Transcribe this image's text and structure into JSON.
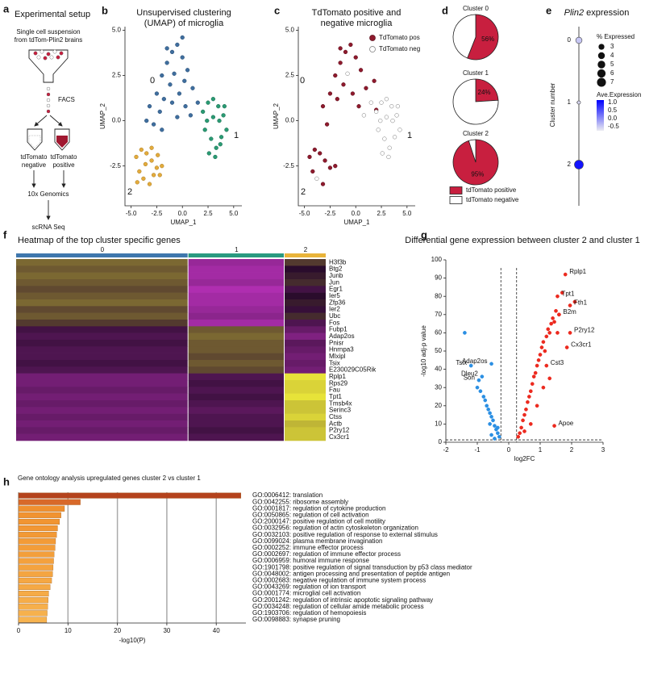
{
  "panel_labels": [
    "a",
    "b",
    "c",
    "d",
    "e",
    "f",
    "g",
    "h"
  ],
  "setup": {
    "title": "Experimental setup",
    "source": [
      "Single cell suspension",
      "from tdTom-Plin2 brains"
    ],
    "sort": "FACS",
    "negative": [
      "tdTomato",
      "negative"
    ],
    "positive": [
      "tdTomato",
      "positive"
    ],
    "sequencing": "10x Genomics",
    "readout": "scRNA Seq"
  },
  "chart_data": [
    {
      "type": "scatter",
      "title": [
        "Unsupervised clustering",
        "(UMAP) of microglia"
      ],
      "x_label": "UMAP_1",
      "y_label": "UMAP_2",
      "xlim": [
        -5.6,
        5.8
      ],
      "ylim": [
        -4.7,
        5.2
      ],
      "xticks": [
        {
          "value": -5,
          "label": "-5.0"
        },
        -2.5,
        {
          "value": 0,
          "label": "0.0"
        },
        2.5,
        {
          "value": 5,
          "label": "5.0"
        }
      ],
      "yticks": [
        -2.5,
        {
          "value": 0,
          "label": "0.0"
        },
        2.5,
        {
          "value": 5,
          "label": "5.0"
        }
      ],
      "cluster_labels": [
        "0",
        "1",
        "2"
      ],
      "series": [
        {
          "color": "#3f6e9e",
          "edge_color": "#2a4d73",
          "x": [
            -3.2,
            -2.5,
            -2.0,
            -1.5,
            -1.0,
            -0.5,
            0,
            0.5,
            1.0,
            1.5,
            -2.8,
            -2.2,
            -1.8,
            -1.2,
            -0.8,
            -0.3,
            0.3,
            0.8,
            -1.5,
            -0.5,
            0.2,
            -2.0,
            -3.5,
            -1.0,
            0.0
          ],
          "y": [
            0.8,
            1.5,
            2.5,
            3.2,
            3.8,
            4.2,
            3.5,
            2.8,
            1.8,
            1.0,
            -0.2,
            0.5,
            1.2,
            2.0,
            2.6,
            1.5,
            0.8,
            0.3,
            4.0,
            0.2,
            2.2,
            -0.5,
            0.0,
            1.0,
            4.6
          ]
        },
        {
          "color": "#2a9a73",
          "edge_color": "#1b6b4f",
          "x": [
            2.0,
            2.5,
            3.0,
            3.5,
            4.0,
            4.3,
            2.2,
            2.8,
            3.3,
            3.8,
            2.4,
            3.0,
            3.6,
            4.1,
            2.6,
            3.2,
            3.7
          ],
          "y": [
            0.5,
            1.0,
            1.2,
            0.8,
            0.3,
            -0.5,
            -0.5,
            -1.0,
            -1.5,
            -0.9,
            0.0,
            0.2,
            0.0,
            0.8,
            -1.8,
            -2.0,
            -1.3
          ]
        },
        {
          "color": "#e3ab3c",
          "edge_color": "#a77a22",
          "x": [
            -4.5,
            -4.0,
            -3.5,
            -3.0,
            -2.5,
            -2.2,
            -4.2,
            -3.8,
            -3.2,
            -2.8,
            -4.4,
            -3.6,
            -3.0,
            -2.4,
            -2.0
          ],
          "y": [
            -2.0,
            -1.6,
            -1.8,
            -2.2,
            -2.6,
            -3.0,
            -2.8,
            -3.2,
            -3.5,
            -3.0,
            -3.4,
            -2.4,
            -1.5,
            -1.9,
            -2.5
          ]
        }
      ]
    },
    {
      "type": "scatter",
      "title": [
        "TdTomato positive and",
        "negative microglia"
      ],
      "x_label": "UMAP_1",
      "y_label": "UMAP_2",
      "xlim": [
        -5.6,
        5.8
      ],
      "ylim": [
        -4.7,
        5.2
      ],
      "xticks": [
        {
          "value": -5,
          "label": "-5.0"
        },
        -2.5,
        {
          "value": 0,
          "label": "0.0"
        },
        2.5,
        {
          "value": 5,
          "label": "5.0"
        }
      ],
      "yticks": [
        -2.5,
        {
          "value": 0,
          "label": "0.0"
        },
        2.5,
        {
          "value": 5,
          "label": "5.0"
        }
      ],
      "cluster_labels": [
        "0",
        "1",
        "2"
      ],
      "series": [
        {
          "name": "TdTomato pos",
          "color": "#8e1a2d",
          "edge_color": "#5a0f1c",
          "x": [
            -3.2,
            -2.5,
            -2.0,
            -1.5,
            -1.0,
            -0.5,
            0,
            0.5,
            1.0,
            -2.8,
            -1.8,
            -1.2,
            -0.3,
            0.3,
            -1.5,
            -4.5,
            -4.0,
            -3.5,
            -3.0,
            -2.5,
            -4.2,
            -3.2,
            -2.0,
            2.0,
            1.8
          ],
          "y": [
            0.8,
            1.5,
            2.5,
            3.2,
            3.8,
            4.2,
            3.5,
            2.8,
            1.8,
            -0.2,
            1.2,
            2.0,
            1.5,
            0.8,
            4.0,
            -2.0,
            -1.6,
            -1.8,
            -2.2,
            -2.6,
            -2.8,
            -3.5,
            -2.5,
            0.6,
            2.2
          ]
        },
        {
          "name": "TdTomato neg",
          "color": "#ffffff",
          "edge_color": "#777777",
          "x": [
            2.0,
            2.5,
            3.0,
            3.5,
            4.0,
            4.3,
            2.2,
            2.8,
            3.3,
            3.8,
            2.4,
            3.0,
            3.6,
            4.1,
            2.6,
            3.2,
            1.5,
            0.8,
            -0.8,
            -3.8
          ],
          "y": [
            0.5,
            1.0,
            1.2,
            0.8,
            0.3,
            -0.5,
            -0.5,
            -1.0,
            -1.5,
            -0.9,
            0.0,
            0.2,
            0.0,
            0.8,
            -1.8,
            -2.0,
            1.0,
            0.3,
            2.6,
            -3.2
          ]
        }
      ]
    },
    {
      "type": "pie",
      "categories": [
        "Cluster 0",
        "Cluster 1",
        "Cluster 2"
      ],
      "series": [
        {
          "name": "tdTomato positive",
          "color": "#c81f3f",
          "values": [
            56,
            24,
            95
          ],
          "value_labels": [
            "56%",
            "24%",
            "95%"
          ]
        },
        {
          "name": "tdTomato negative",
          "color": "#ffffff",
          "values": [
            44,
            76,
            5
          ]
        }
      ]
    },
    {
      "type": "dotplot",
      "title": [
        "Plin2",
        "expression"
      ],
      "y_label": "Cluster number",
      "categories": [
        "0",
        "1",
        "2"
      ],
      "size_values": [
        3.5,
        1,
        7
      ],
      "color_values": [
        -0.45,
        -0.6,
        1.0
      ],
      "size_legend_title": "% Expressed",
      "size_legend": [
        3,
        4,
        5,
        6,
        7
      ],
      "color_legend_title": "Ave.Expression",
      "clim": [
        -0.75,
        1.15
      ],
      "color_low": "#ececf2",
      "color_high": "#0000ff",
      "color_ticks": [
        {
          "value": 1,
          "label": "1.0"
        },
        0.5,
        {
          "value": 0,
          "label": "0.0"
        },
        -0.5
      ]
    },
    {
      "type": "heatmap",
      "title": "Heatmap of the top cluster specific genes",
      "cluster_labels": [
        "0",
        "1",
        "2"
      ],
      "cluster_colors": [
        "#3f77ad",
        "#2a9a80",
        "#e9b43a"
      ],
      "clim": [
        -1.5,
        1.5
      ],
      "genes": [
        "H3f3b",
        "Btg2",
        "Junb",
        "Jun",
        "Egr1",
        "Ier5",
        "Zfp36",
        "Ier2",
        "Ubc",
        "Fos",
        "Fubp1",
        "Adap2os",
        "Pnisr",
        "Hnrnpa3",
        "Mlxipl",
        "Tsix",
        "E230029C05Rik",
        "Rplp1",
        "Rps29",
        "Fau",
        "Tpt1",
        "Tmsb4x",
        "Serinc3",
        "Ctss",
        "Actb",
        "P2ry12",
        "Cx3cr1"
      ],
      "values": [
        [
          0.6,
          -0.9,
          0.3
        ],
        [
          0.5,
          -1.0,
          0.0
        ],
        [
          0.6,
          -1.0,
          0.1
        ],
        [
          0.5,
          -0.9,
          0.2
        ],
        [
          0.4,
          -1.1,
          -0.2
        ],
        [
          0.5,
          -1.0,
          0.0
        ],
        [
          0.6,
          -1.0,
          0.1
        ],
        [
          0.4,
          -0.9,
          -0.1
        ],
        [
          0.5,
          -0.8,
          0.2
        ],
        [
          0.3,
          -1.0,
          -0.3
        ],
        [
          -0.2,
          0.5,
          -0.5
        ],
        [
          -0.3,
          0.6,
          -0.7
        ],
        [
          -0.2,
          0.5,
          -0.4
        ],
        [
          -0.3,
          0.5,
          -0.5
        ],
        [
          -0.3,
          0.4,
          -0.6
        ],
        [
          -0.2,
          0.5,
          -0.5
        ],
        [
          -0.3,
          0.4,
          -0.6
        ],
        [
          -0.6,
          -0.3,
          1.4
        ],
        [
          -0.6,
          -0.2,
          1.3
        ],
        [
          -0.5,
          -0.3,
          1.3
        ],
        [
          -0.6,
          -0.2,
          1.4
        ],
        [
          -0.5,
          -0.3,
          1.2
        ],
        [
          -0.6,
          -0.4,
          1.2
        ],
        [
          -0.5,
          -0.3,
          1.3
        ],
        [
          -0.6,
          -0.3,
          1.1
        ],
        [
          -0.5,
          -0.2,
          1.2
        ],
        [
          -0.6,
          -0.3,
          1.2
        ]
      ]
    },
    {
      "type": "scatter",
      "title": [
        "Differential gene expression between cluster 2 and cluster 1"
      ],
      "x_label": "log2FC",
      "y_label": "-log10 adj-p value",
      "xlim": [
        -2,
        3
      ],
      "ylim": [
        0,
        100
      ],
      "xticks": [
        -2,
        -1,
        0,
        1,
        2,
        3
      ],
      "yticks": [
        0,
        10,
        20,
        30,
        40,
        50,
        60,
        70,
        80,
        90,
        100
      ],
      "thresholds": {
        "x": [
          -0.25,
          0.25
        ],
        "y": 1.3
      },
      "series": [
        {
          "color": "#ec2a1f",
          "x": [
            0.3,
            0.35,
            0.4,
            0.45,
            0.5,
            0.55,
            0.6,
            0.65,
            0.7,
            0.75,
            0.8,
            0.85,
            0.9,
            0.95,
            1.0,
            1.05,
            1.1,
            1.15,
            1.2,
            1.25,
            1.3,
            1.35,
            1.4,
            1.45,
            1.5,
            1.55,
            1.6,
            1.7,
            2.1,
            0.5,
            0.7,
            0.9,
            1.1,
            1.3,
            1.8,
            1.55,
            1.95,
            1.6,
            1.95,
            1.85,
            1.2,
            1.45
          ],
          "y": [
            3,
            5,
            8,
            12,
            15,
            18,
            22,
            25,
            28,
            32,
            36,
            38,
            42,
            45,
            48,
            52,
            55,
            50,
            58,
            62,
            60,
            65,
            68,
            66,
            72,
            60,
            70,
            82,
            77,
            6,
            10,
            20,
            30,
            35,
            92,
            80,
            75,
            70,
            60,
            52,
            42,
            9
          ]
        },
        {
          "color": "#2b8fe3",
          "x": [
            -0.3,
            -0.35,
            -0.4,
            -0.45,
            -0.5,
            -0.55,
            -0.6,
            -0.65,
            -0.7,
            -0.75,
            -0.8,
            -0.9,
            -1.0,
            -1.4,
            -0.45,
            -0.55,
            -0.35,
            -0.6,
            -0.55,
            -1.2,
            -0.85,
            -0.95
          ],
          "y": [
            3,
            5,
            7,
            9,
            12,
            14,
            16,
            18,
            20,
            23,
            25,
            28,
            30,
            60,
            2,
            4,
            8,
            10,
            43,
            42,
            36,
            34
          ]
        }
      ],
      "labels": [
        {
          "text": "Rplp1",
          "x": 1.8,
          "y": 92
        },
        {
          "text": "Tpt1",
          "x": 1.55,
          "y": 80
        },
        {
          "text": "Fth1",
          "x": 1.95,
          "y": 75
        },
        {
          "text": "B2m",
          "x": 1.6,
          "y": 70
        },
        {
          "text": "P2ry12",
          "x": 1.95,
          "y": 60
        },
        {
          "text": "Cx3cr1",
          "x": 1.85,
          "y": 52
        },
        {
          "text": "Cst3",
          "x": 1.2,
          "y": 42
        },
        {
          "text": "Apoe",
          "x": 1.45,
          "y": 9
        },
        {
          "text": "Adap2os",
          "x": -0.55,
          "y": 43
        },
        {
          "text": "Tsix",
          "x": -1.2,
          "y": 42
        },
        {
          "text": "Dleu2",
          "x": -0.85,
          "y": 36
        },
        {
          "text": "Son",
          "x": -0.95,
          "y": 34
        }
      ]
    },
    {
      "type": "hbar",
      "title": "Gene ontology analysis upregulated genes cluster 2 vs cluster 1",
      "x_label": "-log10(P)",
      "xlim": [
        0,
        46
      ],
      "xticks": [
        0,
        10,
        20,
        30,
        40
      ],
      "grid": true,
      "categories": [
        "GO:0006412: translation",
        "GO:0042255: ribosome assembly",
        "GO:0001817: regulation of cytokine production",
        "GO:0050865: regulation of cell activation",
        "GO:2000147: positive regulation of cell motility",
        "GO:0032956: regulation of actin cytoskeleton organization",
        "GO:0032103: positive regulation of response to external stimulus",
        "GO:0099024: plasma membrane invagination",
        "GO:0002252: immune effector process",
        "GO:0002697: regulation of immune effector process",
        "GO:0006959: humoral immune response",
        "GO:1901798: positive regulation of signal transduction by p53 class mediator",
        "GO:0048002: antigen processing and presentation of peptide antigen",
        "GO:0002683: negative regulation of immune system process",
        "GO:0043269: regulation of ion transport",
        "GO:0001774: microglial cell activation",
        "GO:2001242: regulation of intrinsic apoptotic signaling pathway",
        "GO:0034248: regulation of cellular amide metabolic process",
        "GO:1903706: regulation of hemopoiesis",
        "GO:0098883: synapse pruning"
      ],
      "values": [
        45,
        12.5,
        9.3,
        8.6,
        8.3,
        7.9,
        7.7,
        7.5,
        7.4,
        7.2,
        7.1,
        7.0,
        6.9,
        6.7,
        6.4,
        6.1,
        6.0,
        5.9,
        5.8,
        5.7
      ],
      "colors": [
        "#b4431c",
        "#d8692a",
        "#f0902f",
        "#f19331",
        "#f19532",
        "#f29734",
        "#f29936",
        "#f39b37",
        "#f39d39",
        "#f39f3b",
        "#f4a13d",
        "#f4a33f",
        "#f4a541",
        "#f5a743",
        "#f5a945",
        "#f5ab47",
        "#f6ad49",
        "#f6af4b",
        "#f6b14d",
        "#f7b34f"
      ]
    }
  ]
}
